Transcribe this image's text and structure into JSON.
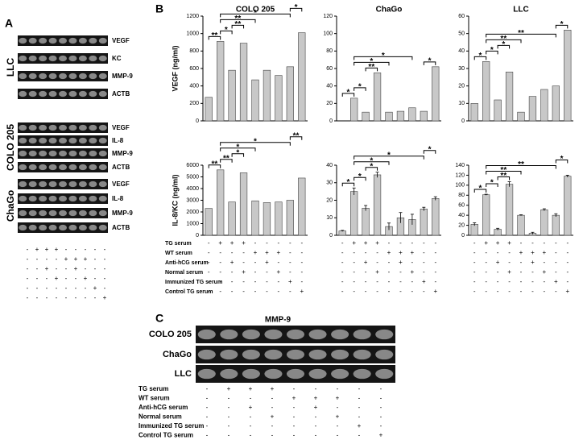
{
  "panel_a": {
    "label": "A",
    "groups": [
      {
        "name": "LLC",
        "genes": [
          "VEGF",
          "KC",
          "MMP-9",
          "ACTB"
        ]
      },
      {
        "name": "COLO 205",
        "genes": [
          "VEGF",
          "IL-8",
          "MMP-9",
          "ACTB"
        ]
      },
      {
        "name": "ChaGo",
        "genes": [
          "VEGF",
          "IL-8",
          "MMP-9",
          "ACTB"
        ]
      }
    ],
    "table": {
      "rows": [
        [
          "-",
          "+",
          "+",
          "+",
          "-",
          "-",
          "-",
          "-",
          "-"
        ],
        [
          "-",
          "-",
          "-",
          "-",
          "+",
          "+",
          "+",
          "-",
          "-"
        ],
        [
          "-",
          "-",
          "+",
          "-",
          "-",
          "+",
          "-",
          "-",
          "-"
        ],
        [
          "-",
          "-",
          "-",
          "+",
          "-",
          "-",
          "+",
          "-",
          "-"
        ],
        [
          "-",
          "-",
          "-",
          "-",
          "-",
          "-",
          "-",
          "+",
          "-"
        ],
        [
          "-",
          "-",
          "-",
          "-",
          "-",
          "-",
          "-",
          "-",
          "+"
        ]
      ]
    }
  },
  "panel_b": {
    "label": "B",
    "table": {
      "rows": [
        {
          "label": "TG serum",
          "cells": [
            "-",
            "+",
            "+",
            "+",
            "-",
            "-",
            "-",
            "-",
            "-"
          ]
        },
        {
          "label": "WT serum",
          "cells": [
            "-",
            "-",
            "-",
            "-",
            "+",
            "+",
            "+",
            "-",
            "-"
          ]
        },
        {
          "label": "Anti-hCG serum",
          "cells": [
            "-",
            "-",
            "+",
            "-",
            "-",
            "+",
            "-",
            "-",
            "-"
          ]
        },
        {
          "label": "Normal serum",
          "cells": [
            "-",
            "-",
            "-",
            "+",
            "-",
            "-",
            "+",
            "-",
            "-"
          ]
        },
        {
          "label": "Immunized TG serum",
          "cells": [
            "-",
            "-",
            "-",
            "-",
            "-",
            "-",
            "-",
            "+",
            "-"
          ]
        },
        {
          "label": "Control TG serum",
          "cells": [
            "-",
            "-",
            "-",
            "-",
            "-",
            "-",
            "-",
            "-",
            "+"
          ]
        }
      ]
    }
  },
  "chart_data": [
    {
      "type": "bar",
      "title": "COLO 205",
      "ylabel": "VEGF (ng/ml)",
      "color": "#c8c8c8",
      "values": [
        270,
        910,
        580,
        890,
        470,
        580,
        520,
        620,
        1010
      ],
      "ylim": [
        0,
        1200
      ],
      "yticks": [
        0,
        200,
        400,
        600,
        800,
        1000,
        1200
      ],
      "annotations": [
        {
          "from": 0,
          "to": 1,
          "label": "**"
        },
        {
          "from": 1,
          "to": 2,
          "label": "*"
        },
        {
          "from": 2,
          "to": 3,
          "label": "**"
        },
        {
          "from": 1,
          "to": 4,
          "label": "**"
        },
        {
          "from": 1,
          "to": 7,
          "label": "*"
        },
        {
          "from": 7,
          "to": 8,
          "label": "*"
        }
      ]
    },
    {
      "type": "bar",
      "title": "ChaGo",
      "color": "#c8c8c8",
      "values": [
        0,
        26,
        10,
        55,
        10,
        11,
        15,
        11,
        62
      ],
      "ylim": [
        0,
        120
      ],
      "yticks": [
        0,
        20,
        40,
        60,
        80,
        100,
        120
      ],
      "annotations": [
        {
          "from": 0,
          "to": 1,
          "label": "*"
        },
        {
          "from": 1,
          "to": 2,
          "label": "*"
        },
        {
          "from": 2,
          "to": 3,
          "label": "**"
        },
        {
          "from": 1,
          "to": 4,
          "label": "*"
        },
        {
          "from": 1,
          "to": 6,
          "label": "*"
        },
        {
          "from": 7,
          "to": 8,
          "label": "*"
        }
      ]
    },
    {
      "type": "bar",
      "title": "LLC",
      "color": "#c8c8c8",
      "values": [
        10,
        34,
        12,
        28,
        5,
        14,
        18,
        20,
        52
      ],
      "ylim": [
        0,
        60
      ],
      "yticks": [
        0,
        10,
        20,
        30,
        40,
        50,
        60
      ],
      "annotations": [
        {
          "from": 0,
          "to": 1,
          "label": "*"
        },
        {
          "from": 1,
          "to": 2,
          "label": "*"
        },
        {
          "from": 2,
          "to": 3,
          "label": "*"
        },
        {
          "from": 1,
          "to": 4,
          "label": "**"
        },
        {
          "from": 1,
          "to": 7,
          "label": "**"
        },
        {
          "from": 7,
          "to": 8,
          "label": "*"
        }
      ]
    },
    {
      "type": "bar",
      "ylabel": "IL-8/KC (ng/ml)",
      "color": "#c8c8c8",
      "values": [
        2300,
        5600,
        2850,
        5350,
        2950,
        2800,
        2850,
        3000,
        4900
      ],
      "ylim": [
        0,
        6000
      ],
      "yticks": [
        0,
        1000,
        2000,
        3000,
        4000,
        5000,
        6000
      ],
      "annotations": [
        {
          "from": 0,
          "to": 1,
          "label": "**"
        },
        {
          "from": 1,
          "to": 2,
          "label": "**"
        },
        {
          "from": 2,
          "to": 3,
          "label": "*"
        },
        {
          "from": 1,
          "to": 4,
          "label": "*"
        },
        {
          "from": 1,
          "to": 7,
          "label": "*"
        },
        {
          "from": 7,
          "to": 8,
          "label": "**"
        }
      ]
    },
    {
      "type": "bar",
      "color": "#c8c8c8",
      "values": [
        2.5,
        25,
        15.5,
        34.5,
        5,
        10,
        9,
        15,
        21
      ],
      "errors": [
        0.3,
        2,
        1.5,
        1.5,
        2,
        3,
        3,
        1,
        1
      ],
      "ylim": [
        0,
        40
      ],
      "yticks": [
        0,
        10,
        20,
        30,
        40
      ],
      "annotations": [
        {
          "from": 0,
          "to": 1,
          "label": "*"
        },
        {
          "from": 1,
          "to": 2,
          "label": "*"
        },
        {
          "from": 2,
          "to": 3,
          "label": "*"
        },
        {
          "from": 1,
          "to": 4,
          "label": "*"
        },
        {
          "from": 1,
          "to": 7,
          "label": "*"
        },
        {
          "from": 7,
          "to": 8,
          "label": "*"
        }
      ]
    },
    {
      "type": "bar",
      "color": "#c8c8c8",
      "values": [
        22,
        81,
        12,
        102,
        40,
        4,
        51,
        40,
        118
      ],
      "errors": [
        3,
        1,
        2,
        5,
        1,
        2,
        2,
        3,
        2
      ],
      "ylim": [
        0,
        140
      ],
      "yticks": [
        0,
        20,
        40,
        60,
        80,
        100,
        120,
        140
      ],
      "annotations": [
        {
          "from": 0,
          "to": 1,
          "label": "*"
        },
        {
          "from": 1,
          "to": 2,
          "label": "*"
        },
        {
          "from": 2,
          "to": 3,
          "label": "**"
        },
        {
          "from": 1,
          "to": 4,
          "label": "**"
        },
        {
          "from": 1,
          "to": 7,
          "label": "**"
        },
        {
          "from": 7,
          "to": 8,
          "label": "*"
        }
      ]
    }
  ],
  "panel_c": {
    "label": "C",
    "title": "MMP-9",
    "lanes": [
      "COLO 205",
      "ChaGo",
      "LLC"
    ],
    "table": {
      "rows": [
        {
          "label": "TG serum",
          "cells": [
            "-",
            "+",
            "+",
            "+",
            "-",
            "-",
            "-",
            "-",
            "-"
          ]
        },
        {
          "label": "WT serum",
          "cells": [
            "-",
            "-",
            "-",
            "-",
            "+",
            "+",
            "+",
            "-",
            "-"
          ]
        },
        {
          "label": "Anti-hCG serum",
          "cells": [
            "-",
            "-",
            "+",
            "-",
            "-",
            "+",
            "-",
            "-",
            "-"
          ]
        },
        {
          "label": "Normal serum",
          "cells": [
            "-",
            "-",
            "-",
            "+",
            "-",
            "-",
            "+",
            "-",
            "-"
          ]
        },
        {
          "label": "Immunized TG serum",
          "cells": [
            "-",
            "-",
            "-",
            "-",
            "-",
            "-",
            "-",
            "+",
            "-"
          ]
        },
        {
          "label": "Control TG serum",
          "cells": [
            "-",
            "-",
            "-",
            "-",
            "-",
            "-",
            "-",
            "-",
            "+"
          ]
        }
      ]
    }
  }
}
